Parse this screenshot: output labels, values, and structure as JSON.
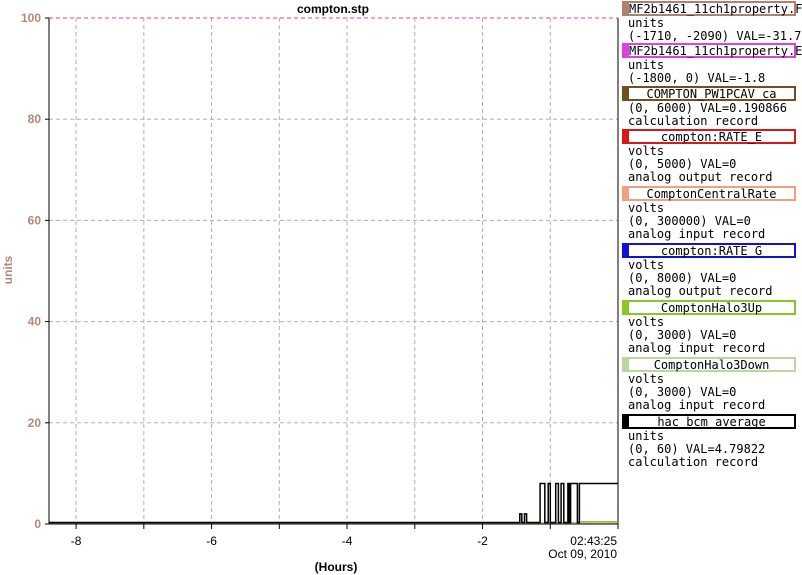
{
  "chart_data": {
    "type": "line",
    "title": "compton.stp",
    "xlabel": "(Hours)",
    "ylabel": "units",
    "xlim": [
      -8.4,
      0
    ],
    "ylim": [
      0,
      100
    ],
    "x_ticks": [
      -8,
      -6,
      -4,
      -2
    ],
    "y_ticks": [
      0,
      20,
      40,
      60,
      80,
      100
    ],
    "x_tick_labels": [
      "-8",
      "-6",
      "-4",
      "-2"
    ],
    "y_tick_labels": [
      "0",
      "20",
      "40",
      "60",
      "80",
      "100"
    ],
    "end_time": "02:43:25",
    "end_date": "Oct 09, 2010",
    "grid": true,
    "series": [
      {
        "name": "hac_bcm_average",
        "color": "#000000",
        "points": [
          [
            -8.4,
            0.3
          ],
          [
            -1.45,
            0.3
          ],
          [
            -1.45,
            2.0
          ],
          [
            -1.42,
            2.0
          ],
          [
            -1.42,
            0.3
          ],
          [
            -1.38,
            0.3
          ],
          [
            -1.38,
            2.0
          ],
          [
            -1.35,
            2.0
          ],
          [
            -1.35,
            0.3
          ],
          [
            -1.15,
            0.3
          ],
          [
            -1.15,
            8.0
          ],
          [
            -1.08,
            8.0
          ],
          [
            -1.08,
            0.3
          ],
          [
            -1.03,
            0.3
          ],
          [
            -1.03,
            8.0
          ],
          [
            -1.0,
            8.0
          ],
          [
            -1.0,
            0.3
          ],
          [
            -0.92,
            0.3
          ],
          [
            -0.92,
            8.0
          ],
          [
            -0.88,
            8.0
          ],
          [
            -0.88,
            0.3
          ],
          [
            -0.84,
            0.3
          ],
          [
            -0.84,
            8.0
          ],
          [
            -0.8,
            8.0
          ],
          [
            -0.8,
            0.3
          ],
          [
            -0.74,
            0.3
          ],
          [
            -0.74,
            8.0
          ],
          [
            -0.72,
            8.0
          ],
          [
            -0.72,
            0.3
          ],
          [
            -0.7,
            0.3
          ],
          [
            -0.7,
            8.0
          ],
          [
            -0.6,
            8.0
          ],
          [
            -0.6,
            0.3
          ],
          [
            -0.57,
            0.3
          ],
          [
            -0.57,
            8.0
          ],
          [
            0,
            8.0
          ]
        ]
      },
      {
        "name": "ComptonHalo3Up",
        "color": "#88c820",
        "points": [
          [
            -8.4,
            0.25
          ],
          [
            0,
            0.25
          ]
        ]
      },
      {
        "name": "MF2b1461_11ch1property.F",
        "color": "#c8a050",
        "points": [
          [
            -0.55,
            0.5
          ],
          [
            0,
            0.5
          ]
        ]
      }
    ],
    "legend": [
      {
        "name": "MF2b1461_11ch1property.F",
        "color": "#b08070",
        "lines": [
          "units",
          "(-1710, -2090) VAL=-31.7"
        ]
      },
      {
        "name": "MF2b1461_11ch1property.E",
        "color": "#e040e0",
        "lines": [
          "units",
          "(-1800, 0)  VAL=-1.8"
        ]
      },
      {
        "name": "COMPTON_PW1PCAV_ca",
        "color": "#705020",
        "lines": [
          "(0, 6000) VAL=0.190866",
          "calculation record"
        ]
      },
      {
        "name": "compton:RATE_E",
        "color": "#d81818",
        "lines": [
          "volts",
          "(0, 5000)  VAL=0",
          "analog output record"
        ]
      },
      {
        "name": "ComptonCentralRate",
        "color": "#f0a080",
        "lines": [
          "volts",
          "(0, 300000) VAL=0",
          "analog input record"
        ]
      },
      {
        "name": "compton:RATE_G",
        "color": "#1010d8",
        "lines": [
          "volts",
          "(0, 8000)  VAL=0",
          "analog output record"
        ]
      },
      {
        "name": "ComptonHalo3Up",
        "color": "#88c820",
        "lines": [
          "volts",
          "(0, 3000)  VAL=0",
          "analog input record"
        ]
      },
      {
        "name": "ComptonHalo3Down",
        "color": "#b8d8a0",
        "lines": [
          "volts",
          "(0, 3000)  VAL=0",
          "analog input record"
        ]
      },
      {
        "name": "hac_bcm_average",
        "color": "#000000",
        "lines": [
          "units",
          "(0, 60) VAL=4.79822",
          "calculation record"
        ]
      }
    ]
  }
}
